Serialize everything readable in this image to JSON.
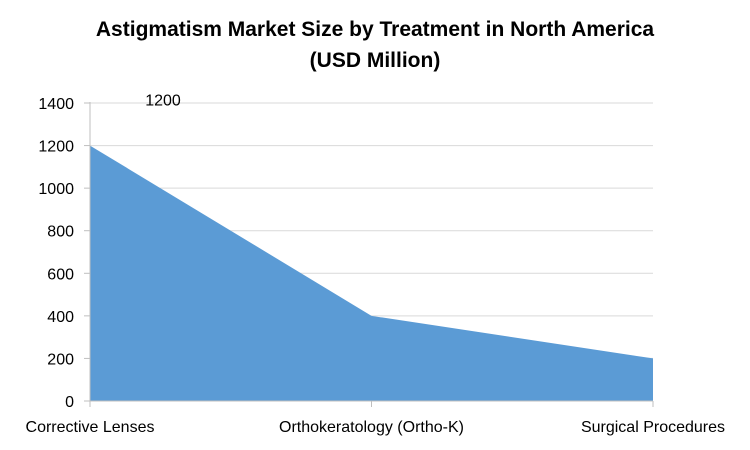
{
  "chart_data": {
    "type": "area",
    "title_lines": [
      "Astigmatism Market Size by Treatment in North America",
      "(USD Million)"
    ],
    "categories": [
      "Corrective Lenses",
      "Orthokeratology (Ortho-K)",
      "Surgical Procedures"
    ],
    "series": [
      {
        "values": [
          1200,
          400,
          200
        ],
        "color": "#5b9bd5"
      }
    ],
    "data_labels": [
      {
        "index": 0,
        "text": "1200"
      }
    ],
    "ylim": [
      0,
      1400
    ],
    "yticks": [
      0,
      200,
      400,
      600,
      800,
      1000,
      1200,
      1400
    ],
    "grid": true,
    "legend": "none",
    "xlabel": "",
    "ylabel": ""
  }
}
